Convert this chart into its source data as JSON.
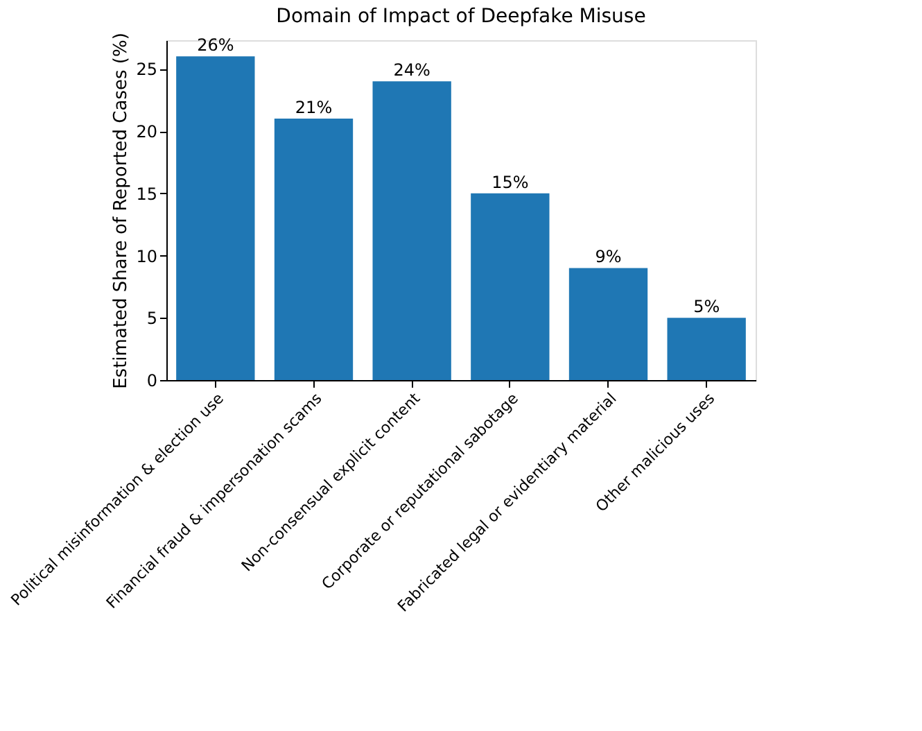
{
  "chart_data": {
    "type": "bar",
    "title": "Domain of Impact of Deepfake Misuse",
    "ylabel": "Estimated Share of Reported Cases (%)",
    "categories": [
      "Political misinformation & election use",
      "Financial fraud & impersonation scams",
      "Non-consensual explicit content",
      "Corporate or reputational sabotage",
      "Fabricated legal or evidentiary material",
      "Other malicious uses"
    ],
    "values": [
      26,
      21,
      24,
      15,
      9,
      5
    ],
    "value_labels": [
      "26%",
      "21%",
      "24%",
      "15%",
      "9%",
      "5%"
    ],
    "color": "#1f77b4",
    "ylim": [
      0,
      27.3
    ],
    "yticks": [
      0,
      5,
      10,
      15,
      20,
      25
    ],
    "grid": false
  }
}
